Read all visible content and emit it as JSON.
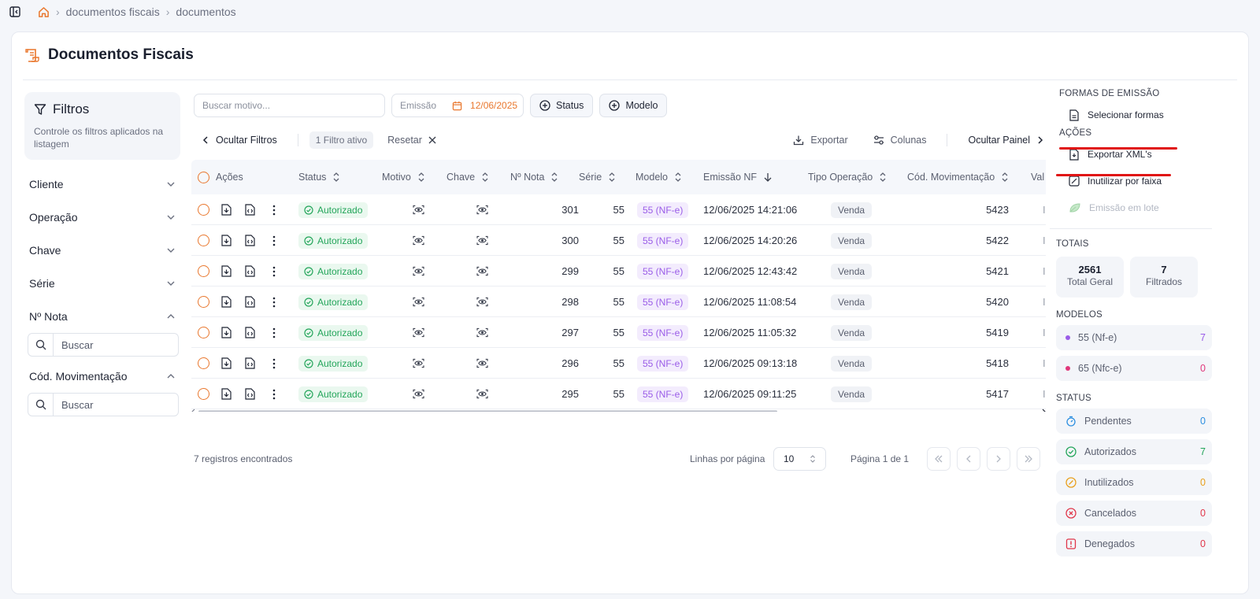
{
  "breadcrumb": {
    "items": [
      "documentos fiscais",
      "documentos"
    ]
  },
  "page": {
    "title": "Documentos Fiscais"
  },
  "filters": {
    "title": "Filtros",
    "description": "Controle os filtros aplicados na listagem",
    "groups": [
      "Cliente",
      "Operação",
      "Chave",
      "Série",
      "Nº Nota",
      "Cód. Movimentação"
    ],
    "search_placeholder": "Buscar"
  },
  "toolbar": {
    "search_placeholder": "Buscar motivo...",
    "emissao_label": "Emissão",
    "emissao_date": "12/06/2025",
    "status_label": "Status",
    "modelo_label": "Modelo",
    "hide_filters": "Ocultar Filtros",
    "active_filters": "1 Filtro ativo",
    "reset": "Resetar",
    "export": "Exportar",
    "columns": "Colunas",
    "hide_panel": "Ocultar Painel"
  },
  "table": {
    "headers": {
      "acoes": "Ações",
      "status": "Status",
      "motivo": "Motivo",
      "chave": "Chave",
      "nota": "Nº Nota",
      "serie": "Série",
      "modelo": "Modelo",
      "emissao": "Emissão NF",
      "tipo": "Tipo Operação",
      "cod": "Cód. Movimentação",
      "val": "Val"
    },
    "rows": [
      {
        "status": "Autorizado",
        "nota": "301",
        "serie": "55",
        "modelo": "55 (NF-e)",
        "emissao": "12/06/2025 14:21:06",
        "tipo": "Venda",
        "cod": "5423",
        "val": "I"
      },
      {
        "status": "Autorizado",
        "nota": "300",
        "serie": "55",
        "modelo": "55 (NF-e)",
        "emissao": "12/06/2025 14:20:26",
        "tipo": "Venda",
        "cod": "5422",
        "val": "I"
      },
      {
        "status": "Autorizado",
        "nota": "299",
        "serie": "55",
        "modelo": "55 (NF-e)",
        "emissao": "12/06/2025 12:43:42",
        "tipo": "Venda",
        "cod": "5421",
        "val": "I"
      },
      {
        "status": "Autorizado",
        "nota": "298",
        "serie": "55",
        "modelo": "55 (NF-e)",
        "emissao": "12/06/2025 11:08:54",
        "tipo": "Venda",
        "cod": "5420",
        "val": "I"
      },
      {
        "status": "Autorizado",
        "nota": "297",
        "serie": "55",
        "modelo": "55 (NF-e)",
        "emissao": "12/06/2025 11:05:32",
        "tipo": "Venda",
        "cod": "5419",
        "val": "I"
      },
      {
        "status": "Autorizado",
        "nota": "296",
        "serie": "55",
        "modelo": "55 (NF-e)",
        "emissao": "12/06/2025 09:13:18",
        "tipo": "Venda",
        "cod": "5418",
        "val": "I"
      },
      {
        "status": "Autorizado",
        "nota": "295",
        "serie": "55",
        "modelo": "55 (NF-e)",
        "emissao": "12/06/2025 09:11:25",
        "tipo": "Venda",
        "cod": "5417",
        "val": "I"
      }
    ]
  },
  "footer": {
    "records": "7 registros encontrados",
    "rows_per_page_label": "Linhas por página",
    "rows_per_page_value": "10",
    "page_info": "Página 1 de 1"
  },
  "panel": {
    "formas_title": "FORMAS DE EMISSÃO",
    "selecionar": "Selecionar formas",
    "acoes_title": "AÇÕES",
    "exportar_xml": "Exportar XML's",
    "inutilizar": "Inutilizar por faixa",
    "lote": "Emissão em lote",
    "totais_title": "TOTAIS",
    "total_geral_value": "2561",
    "total_geral_label": "Total Geral",
    "filtrados_value": "7",
    "filtrados_label": "Filtrados",
    "modelos_title": "MODELOS",
    "modelos": [
      {
        "label": "55 (Nf-e)",
        "count": "7",
        "color": "#9a5ce8"
      },
      {
        "label": "65 (Nfc-e)",
        "count": "0",
        "color": "#e0367a"
      }
    ],
    "status_title": "STATUS",
    "status": [
      {
        "label": "Pendentes",
        "count": "0",
        "color": "#2d8fe0",
        "icon": "timer-icon"
      },
      {
        "label": "Autorizados",
        "count": "7",
        "color": "#23a55a",
        "icon": "check-circle-icon"
      },
      {
        "label": "Inutilizados",
        "count": "0",
        "color": "#e9a01d",
        "icon": "slash-circle-icon"
      },
      {
        "label": "Cancelados",
        "count": "0",
        "color": "#e0364a",
        "icon": "x-circle-icon"
      },
      {
        "label": "Denegados",
        "count": "0",
        "color": "#e0364a",
        "icon": "alert-icon"
      }
    ]
  },
  "colors": {
    "accent": "#e9772d",
    "annotation_red": "#e01414"
  }
}
